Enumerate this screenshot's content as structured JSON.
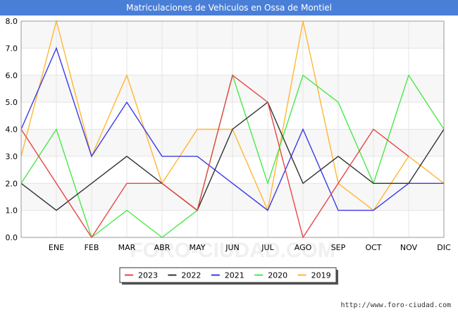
{
  "chart_data": {
    "type": "line",
    "title": "Matriculaciones de Vehiculos en Ossa de Montiel",
    "categories": [
      "",
      "ENE",
      "FEB",
      "MAR",
      "ABR",
      "MAY",
      "JUN",
      "JUL",
      "AGO",
      "SEP",
      "OCT",
      "NOV",
      "DIC"
    ],
    "ylim": [
      0,
      8
    ],
    "yticks": [
      "0.0",
      "1.0",
      "2.0",
      "3.0",
      "4.0",
      "5.0",
      "6.0",
      "7.0",
      "8.0"
    ],
    "xlabel": "",
    "ylabel": "",
    "legend_position": "bottom",
    "watermark": "FORO-CIUDAD.COM",
    "series": [
      {
        "name": "2023",
        "color": "#e84545",
        "values": [
          4,
          2,
          0,
          2,
          2,
          1,
          6,
          5,
          0,
          2,
          4,
          3,
          null
        ]
      },
      {
        "name": "2022",
        "color": "#333333",
        "values": [
          2,
          1,
          2,
          3,
          2,
          1,
          4,
          5,
          2,
          3,
          2,
          2,
          4
        ]
      },
      {
        "name": "2021",
        "color": "#3a3ae8",
        "values": [
          4,
          7,
          3,
          5,
          3,
          3,
          2,
          1,
          4,
          1,
          1,
          2,
          2
        ]
      },
      {
        "name": "2020",
        "color": "#4ae84a",
        "values": [
          2,
          4,
          0,
          1,
          0,
          1,
          6,
          2,
          6,
          5,
          2,
          6,
          4
        ]
      },
      {
        "name": "2019",
        "color": "#ffb733",
        "values": [
          3,
          8,
          3,
          6,
          2,
          4,
          4,
          1,
          8,
          2,
          1,
          3,
          2
        ]
      }
    ]
  },
  "footer": {
    "url": "http://www.foro-ciudad.com"
  }
}
